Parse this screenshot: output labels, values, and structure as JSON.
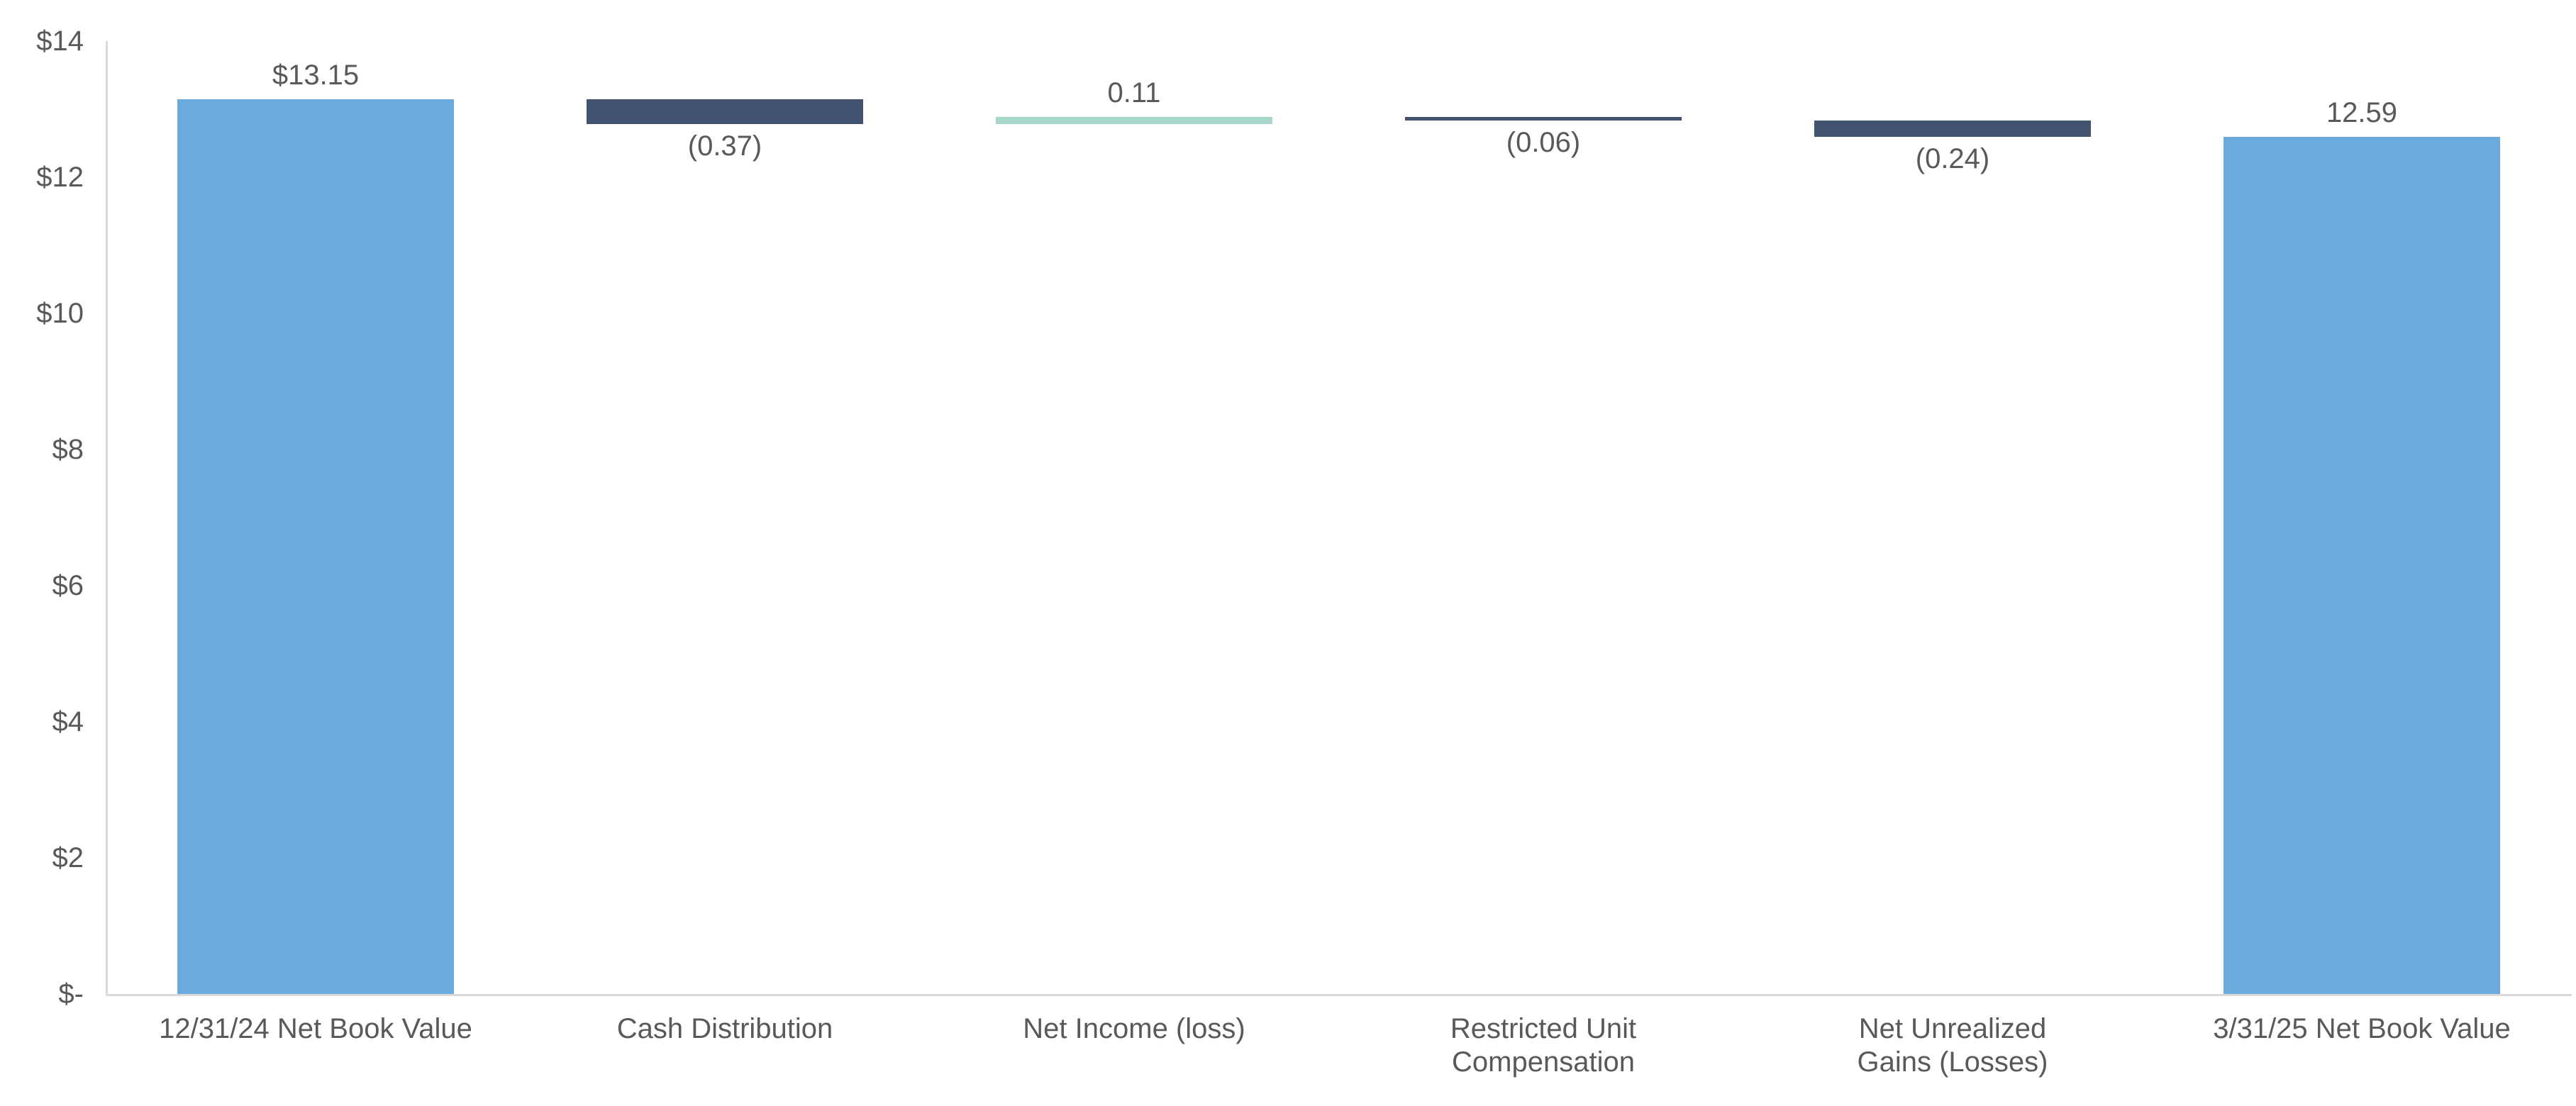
{
  "chart_data": {
    "type": "bar",
    "subtype": "waterfall",
    "title": "",
    "grid": false,
    "legend_position": "none",
    "y_axis": {
      "min": 0,
      "max": 14,
      "tick_step": 2,
      "tick_labels": [
        "$-",
        "$2",
        "$4",
        "$6",
        "$8",
        "$10",
        "$12",
        "$14"
      ]
    },
    "categories": [
      "12/31/24 Net Book Value",
      "Cash Distribution",
      "Net Income (loss)",
      "Restricted Unit\nCompensation",
      "Net Unrealized\nGains (Losses)",
      "3/31/25 Net Book Value"
    ],
    "bars": [
      {
        "category": "12/31/24 Net Book Value",
        "start": 0,
        "end": 13.15,
        "value": 13.15,
        "label": "$13.15",
        "label_position": "above",
        "color_key": "total"
      },
      {
        "category": "Cash Distribution",
        "start": 13.15,
        "end": 12.78,
        "value": -0.37,
        "label": "(0.37)",
        "label_position": "below",
        "color_key": "decrease"
      },
      {
        "category": "Net Income (loss)",
        "start": 12.78,
        "end": 12.89,
        "value": 0.11,
        "label": "0.11",
        "label_position": "above",
        "color_key": "increase"
      },
      {
        "category": "Restricted Unit\nCompensation",
        "start": 12.89,
        "end": 12.83,
        "value": -0.06,
        "label": "(0.06)",
        "label_position": "below",
        "color_key": "decrease"
      },
      {
        "category": "Net Unrealized\nGains (Losses)",
        "start": 12.83,
        "end": 12.59,
        "value": -0.24,
        "label": "(0.24)",
        "label_position": "below",
        "color_key": "decrease"
      },
      {
        "category": "3/31/25 Net Book Value",
        "start": 0,
        "end": 12.59,
        "value": 12.59,
        "label": "12.59",
        "label_position": "above",
        "color_key": "total"
      }
    ],
    "colors": {
      "total": "#6CA9DC",
      "decrease": "#42536F",
      "increase": "#A9D6CB",
      "axis_line": "#D9D9D9",
      "text": "#595959"
    }
  }
}
